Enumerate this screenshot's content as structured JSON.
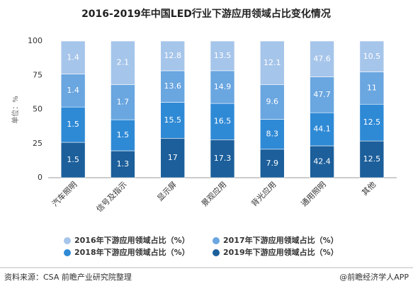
{
  "chart_data": {
    "type": "stacked_percent_bar",
    "title": "2016-2019年中国LED行业下游应用领域占比变化情况",
    "y_label": "单位：%",
    "categories": [
      "汽车照明",
      "信号及指示",
      "显示屏",
      "景观应用",
      "背光应用",
      "通用照明",
      "其他"
    ],
    "series": [
      {
        "name": "2016年下游应用领域占比（%）",
        "color": "#a6c5ea",
        "values": [
          1.4,
          2.1,
          12.8,
          13.5,
          12.1,
          47.6,
          10.5
        ]
      },
      {
        "name": "2017年下游应用领域占比（%）",
        "color": "#6aa6e0",
        "values": [
          1.4,
          1.7,
          13.6,
          14.9,
          9.6,
          47.7,
          11
        ]
      },
      {
        "name": "2018年下游应用领域占比（%）",
        "color": "#2f8ad6",
        "values": [
          1.5,
          1.5,
          15.5,
          16.5,
          8.3,
          44.1,
          12.5
        ]
      },
      {
        "name": "2019年下游应用领域占比（%）",
        "color": "#1c5f9b",
        "values": [
          1.5,
          1.3,
          17,
          17.3,
          7.9,
          42.4,
          12.5
        ]
      }
    ],
    "ylim": [
      0,
      100
    ],
    "yticks": [
      0,
      25,
      50,
      75,
      100
    ],
    "grid": false,
    "source": "资料来源：CSA 前瞻产业研究院整理",
    "credit": "@前瞻经济学人APP"
  }
}
